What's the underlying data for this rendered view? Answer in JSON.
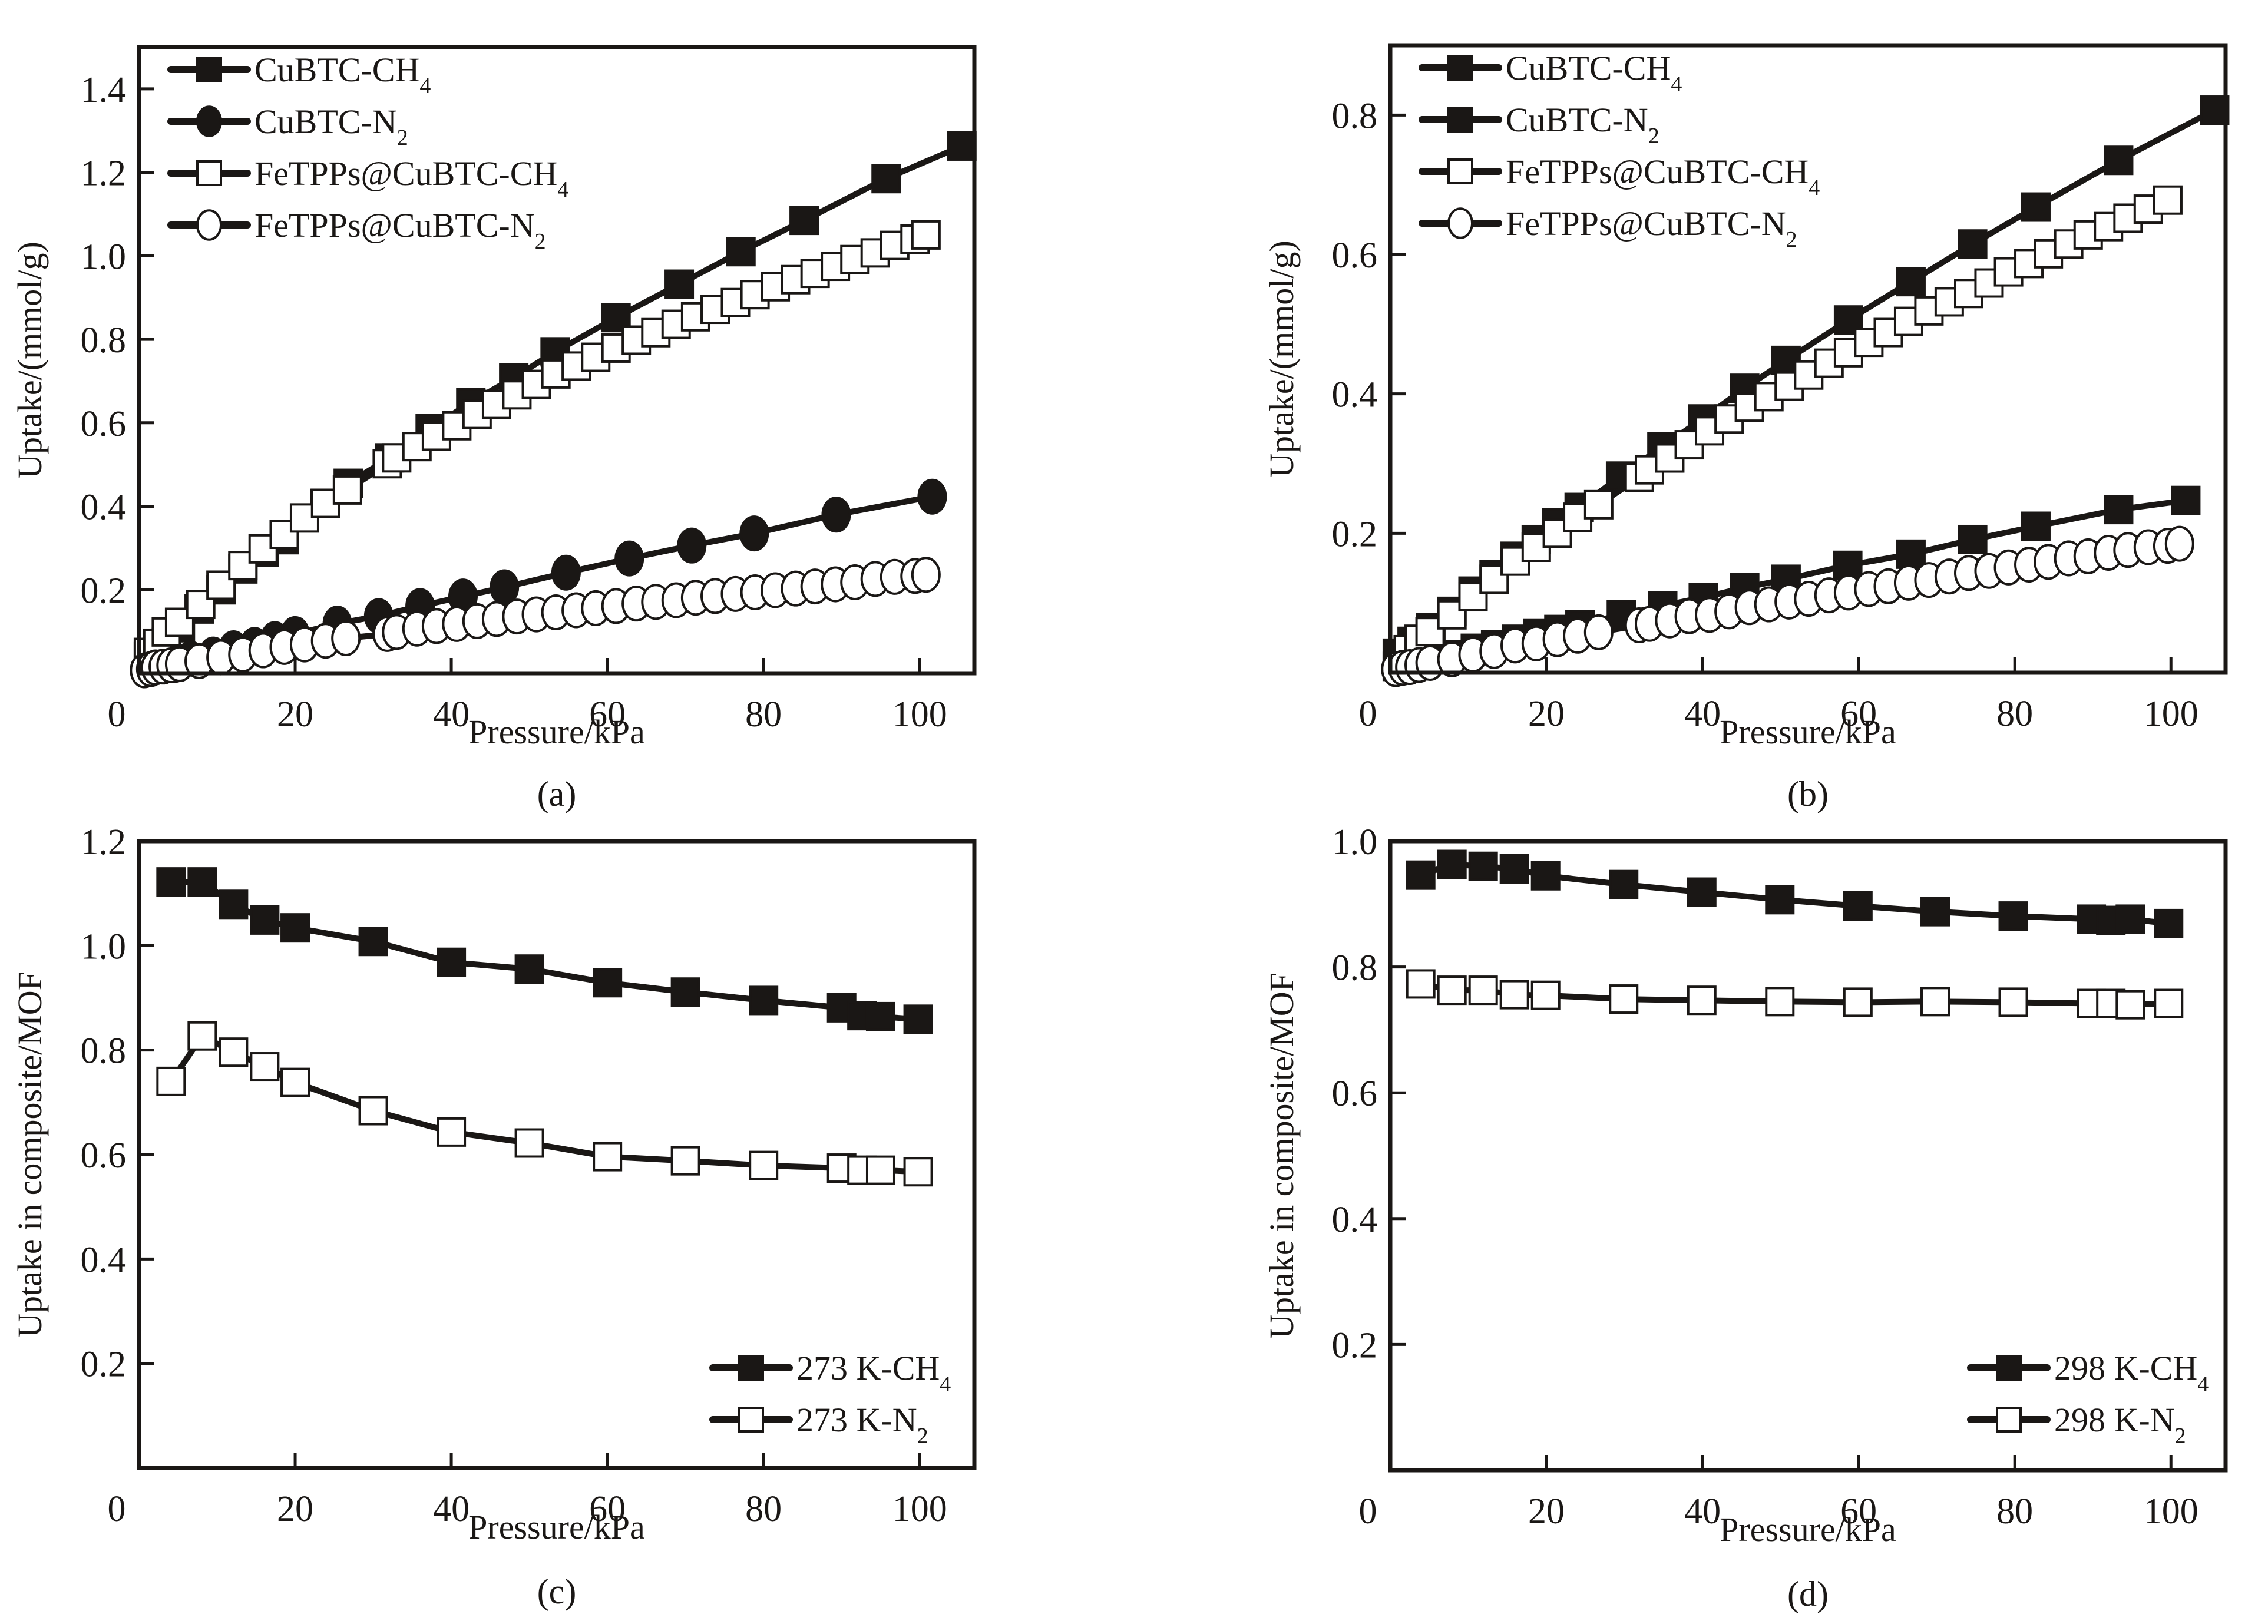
{
  "figure": {
    "ink_color": "#1a1715",
    "background": "#ffffff"
  },
  "chart_data": [
    {
      "id": "a",
      "panel_label": "(a)",
      "type": "line",
      "xlabel": "Pressure/kPa",
      "ylabel": "Uptake/(mmol/g)",
      "xlim": [
        0,
        107
      ],
      "ylim": [
        0,
        1.5
      ],
      "xticks": [
        0,
        20,
        40,
        60,
        80,
        100
      ],
      "xtick_labels": [
        "0",
        "20",
        "40",
        "60",
        "80",
        "100"
      ],
      "yticks": [
        0.2,
        0.4,
        0.6,
        0.8,
        1.0,
        1.2,
        1.4
      ],
      "ytick_labels": [
        "0.2",
        "0.4",
        "0.6",
        "0.8",
        "1.0",
        "1.2",
        "1.4"
      ],
      "grid": false,
      "legend_position": "top-left",
      "series": [
        {
          "name": "CuBTC-CH4",
          "label_main": "CuBTC-CH",
          "label_sub": "4",
          "marker": "square",
          "filled": true,
          "x": [
            1.2,
            3.5,
            5.3,
            7.7,
            10.5,
            13.3,
            16.0,
            18.6,
            23.8,
            26.8,
            32.1,
            37.3,
            42.5,
            48.0,
            53.3,
            61.1,
            69.2,
            77.1,
            85.2,
            95.7,
            105.4
          ],
          "y": [
            0.04,
            0.074,
            0.109,
            0.154,
            0.2,
            0.25,
            0.29,
            0.32,
            0.407,
            0.455,
            0.516,
            0.586,
            0.649,
            0.708,
            0.77,
            0.852,
            0.932,
            1.01,
            1.085,
            1.185,
            1.263
          ]
        },
        {
          "name": "CuBTC-N2",
          "label_main": "CuBTC-N",
          "label_sub": "2",
          "marker": "circle",
          "filled": true,
          "x": [
            1.2,
            4.6,
            6.6,
            9.5,
            12.1,
            14.8,
            17.4,
            20.0,
            25.4,
            30.7,
            36.0,
            41.5,
            46.8,
            54.7,
            62.8,
            70.8,
            78.8,
            89.3,
            101.6
          ],
          "y": [
            0.01,
            0.02,
            0.035,
            0.045,
            0.06,
            0.068,
            0.082,
            0.094,
            0.119,
            0.137,
            0.161,
            0.184,
            0.206,
            0.241,
            0.275,
            0.306,
            0.335,
            0.38,
            0.423
          ]
        },
        {
          "name": "FeTPPs@CuBTC-CH4",
          "label_main": "FeTPPs@CuBTC-CH",
          "label_sub": "4",
          "marker": "square",
          "filled": false,
          "x": [
            1.2,
            2.4,
            3.5,
            5.2,
            7.9,
            10.5,
            13.3,
            15.9,
            18.6,
            21.2,
            23.9,
            26.7,
            31.8,
            33.0,
            35.6,
            38.1,
            40.7,
            43.3,
            45.8,
            48.4,
            50.9,
            53.4,
            56.0,
            58.5,
            61.1,
            63.7,
            66.2,
            68.8,
            71.3,
            73.8,
            76.4,
            78.9,
            81.5,
            84.1,
            86.6,
            89.2,
            91.7,
            94.3,
            96.8,
            99.4,
            100.8
          ],
          "y": [
            0.05,
            0.072,
            0.099,
            0.122,
            0.165,
            0.211,
            0.258,
            0.298,
            0.333,
            0.372,
            0.407,
            0.439,
            0.502,
            0.516,
            0.543,
            0.568,
            0.593,
            0.62,
            0.644,
            0.667,
            0.692,
            0.717,
            0.736,
            0.757,
            0.779,
            0.798,
            0.816,
            0.836,
            0.854,
            0.872,
            0.888,
            0.907,
            0.926,
            0.943,
            0.958,
            0.975,
            0.991,
            1.007,
            1.025,
            1.04,
            1.05
          ]
        },
        {
          "name": "FeTPPs@CuBTC-N2",
          "label_main": "FeTPPs@CuBTC-N",
          "label_sub": "2",
          "marker": "circle",
          "filled": false,
          "x": [
            0.7,
            1.5,
            2.1,
            3.1,
            4.1,
            5.2,
            7.7,
            10.5,
            13.3,
            15.9,
            18.6,
            21.2,
            23.9,
            26.5,
            31.8,
            33.0,
            35.6,
            38.1,
            40.7,
            43.3,
            45.8,
            48.4,
            50.9,
            53.4,
            56.0,
            58.5,
            61.1,
            63.7,
            66.2,
            68.8,
            71.3,
            73.8,
            76.4,
            78.9,
            81.5,
            84.1,
            86.6,
            89.2,
            91.7,
            94.3,
            96.8,
            99.4,
            100.8
          ],
          "y": [
            0.007,
            0.01,
            0.014,
            0.016,
            0.019,
            0.022,
            0.029,
            0.038,
            0.045,
            0.055,
            0.063,
            0.069,
            0.078,
            0.084,
            0.094,
            0.099,
            0.107,
            0.113,
            0.118,
            0.125,
            0.13,
            0.136,
            0.141,
            0.146,
            0.151,
            0.156,
            0.161,
            0.167,
            0.171,
            0.175,
            0.181,
            0.185,
            0.19,
            0.194,
            0.199,
            0.203,
            0.208,
            0.213,
            0.218,
            0.226,
            0.231,
            0.233,
            0.236
          ]
        }
      ]
    },
    {
      "id": "b",
      "panel_label": "(b)",
      "type": "line",
      "xlabel": "Pressure/kPa",
      "ylabel": "Uptake/(mmol/g)",
      "xlim": [
        0,
        107
      ],
      "ylim": [
        0,
        0.9
      ],
      "xticks": [
        0,
        20,
        40,
        60,
        80,
        100
      ],
      "xtick_labels": [
        "0",
        "20",
        "40",
        "60",
        "80",
        "100"
      ],
      "yticks": [
        0.2,
        0.4,
        0.6,
        0.8
      ],
      "ytick_labels": [
        "0.2",
        "0.4",
        "0.6",
        "0.8"
      ],
      "grid": false,
      "legend_position": "top-left",
      "series": [
        {
          "name": "CuBTC-CH4",
          "label_main": "CuBTC-CH",
          "label_sub": "4",
          "marker": "square",
          "filled": true,
          "x": [
            0.9,
            2.8,
            5.2,
            7.9,
            10.6,
            13.3,
            16.0,
            18.7,
            21.3,
            24.2,
            29.5,
            34.8,
            40.0,
            45.4,
            50.7,
            58.7,
            66.7,
            74.6,
            82.7,
            93.3,
            105.6
          ],
          "y": [
            0.028,
            0.045,
            0.065,
            0.088,
            0.117,
            0.141,
            0.167,
            0.191,
            0.215,
            0.237,
            0.282,
            0.324,
            0.364,
            0.408,
            0.448,
            0.506,
            0.561,
            0.615,
            0.668,
            0.735,
            0.807
          ]
        },
        {
          "name": "CuBTC-N2",
          "label_main": "CuBTC-N",
          "label_sub": "2",
          "marker": "square",
          "filled": true,
          "x": [
            0.9,
            5.5,
            8.2,
            10.9,
            13.5,
            16.2,
            18.9,
            21.6,
            24.3,
            29.6,
            34.9,
            40.1,
            45.4,
            50.7,
            58.6,
            66.7,
            74.6,
            82.7,
            93.3,
            101.9
          ],
          "y": [
            0.009,
            0.019,
            0.026,
            0.035,
            0.04,
            0.048,
            0.056,
            0.062,
            0.069,
            0.083,
            0.096,
            0.108,
            0.122,
            0.134,
            0.154,
            0.17,
            0.191,
            0.21,
            0.234,
            0.247
          ]
        },
        {
          "name": "FeTPPs@CuBTC-CH4",
          "label_main": "FeTPPs@CuBTC-CH",
          "label_sub": "4",
          "marker": "square",
          "filled": false,
          "x": [
            2.3,
            3.7,
            5.1,
            7.9,
            10.6,
            13.3,
            16.0,
            18.7,
            21.4,
            24.0,
            26.7,
            31.9,
            33.2,
            35.8,
            38.3,
            40.9,
            43.4,
            46.0,
            48.5,
            51.1,
            53.6,
            56.2,
            58.7,
            61.3,
            63.8,
            66.4,
            69.0,
            71.6,
            74.1,
            76.7,
            79.2,
            81.8,
            84.3,
            86.9,
            89.4,
            92.0,
            94.5,
            97.1,
            99.6
          ],
          "y": [
            0.033,
            0.048,
            0.059,
            0.083,
            0.109,
            0.134,
            0.16,
            0.18,
            0.2,
            0.223,
            0.241,
            0.28,
            0.291,
            0.308,
            0.327,
            0.347,
            0.364,
            0.381,
            0.396,
            0.411,
            0.427,
            0.444,
            0.459,
            0.474,
            0.488,
            0.504,
            0.519,
            0.532,
            0.544,
            0.559,
            0.575,
            0.587,
            0.601,
            0.615,
            0.628,
            0.64,
            0.652,
            0.665,
            0.678
          ]
        },
        {
          "name": "FeTPPs@CuBTC-N2",
          "label_main": "FeTPPs@CuBTC-N",
          "label_sub": "2",
          "marker": "circle",
          "filled": false,
          "x": [
            0.7,
            1.6,
            2.5,
            3.7,
            5.1,
            7.9,
            10.6,
            13.3,
            16.0,
            18.7,
            21.4,
            24.0,
            26.7,
            31.9,
            33.2,
            35.8,
            38.3,
            40.9,
            43.4,
            46.0,
            48.5,
            51.1,
            53.6,
            56.2,
            58.7,
            61.3,
            63.8,
            66.4,
            69.0,
            71.6,
            74.1,
            76.7,
            79.2,
            81.8,
            84.3,
            86.9,
            89.4,
            92.0,
            94.5,
            97.1,
            99.6,
            101.1
          ],
          "y": [
            0.005,
            0.007,
            0.008,
            0.011,
            0.014,
            0.019,
            0.026,
            0.031,
            0.039,
            0.042,
            0.048,
            0.053,
            0.058,
            0.068,
            0.07,
            0.075,
            0.081,
            0.083,
            0.088,
            0.094,
            0.098,
            0.102,
            0.106,
            0.111,
            0.115,
            0.12,
            0.124,
            0.129,
            0.133,
            0.138,
            0.143,
            0.146,
            0.151,
            0.155,
            0.159,
            0.164,
            0.167,
            0.172,
            0.176,
            0.18,
            0.182,
            0.185
          ]
        }
      ]
    },
    {
      "id": "c",
      "panel_label": "(c)",
      "type": "line",
      "xlabel": "Pressure/kPa",
      "ylabel": "Uptake in composite/MOF",
      "xlim": [
        0,
        107
      ],
      "ylim": [
        0,
        1.2
      ],
      "xticks": [
        0,
        20,
        40,
        60,
        80,
        100
      ],
      "xtick_labels": [
        "0",
        "20",
        "40",
        "60",
        "80",
        "100"
      ],
      "yticks": [
        0.2,
        0.4,
        0.6,
        0.8,
        1.0,
        1.2
      ],
      "ytick_labels": [
        "0.2",
        "0.4",
        "0.6",
        "0.8",
        "1.0",
        "1.2"
      ],
      "grid": false,
      "legend_position": "bottom-right",
      "series": [
        {
          "name": "273 K-CH4",
          "label_main": "273 K-CH",
          "label_sub": "4",
          "marker": "square",
          "filled": true,
          "x": [
            4.1,
            8.1,
            12.1,
            16.1,
            20.0,
            30.0,
            40.0,
            50.0,
            60.0,
            70.0,
            80.0,
            90.0,
            92.6,
            95.0,
            99.8
          ],
          "y": [
            1.122,
            1.122,
            1.079,
            1.049,
            1.034,
            1.008,
            0.968,
            0.955,
            0.929,
            0.911,
            0.895,
            0.881,
            0.866,
            0.864,
            0.859
          ]
        },
        {
          "name": "273 K-N2",
          "label_main": "273 K-N",
          "label_sub": "2",
          "marker": "square",
          "filled": false,
          "x": [
            4.1,
            8.1,
            12.1,
            16.1,
            20.0,
            30.0,
            40.0,
            50.0,
            60.0,
            70.0,
            80.0,
            90.0,
            92.6,
            95.0,
            99.8
          ],
          "y": [
            0.74,
            0.827,
            0.796,
            0.768,
            0.738,
            0.684,
            0.643,
            0.622,
            0.596,
            0.588,
            0.579,
            0.574,
            0.57,
            0.57,
            0.567
          ]
        }
      ]
    },
    {
      "id": "d",
      "panel_label": "(d)",
      "type": "line",
      "xlabel": "Pressure/kPa",
      "ylabel": "Uptake in composite/MOF",
      "xlim": [
        0,
        107
      ],
      "ylim": [
        0,
        1.0
      ],
      "xticks": [
        0,
        20,
        40,
        60,
        80,
        100
      ],
      "xtick_labels": [
        "0",
        "20",
        "40",
        "60",
        "80",
        "100"
      ],
      "yticks": [
        0.2,
        0.4,
        0.6,
        0.8,
        1.0
      ],
      "ytick_labels": [
        "0.2",
        "0.4",
        "0.6",
        "0.8",
        "1.0"
      ],
      "grid": false,
      "legend_position": "bottom-right",
      "series": [
        {
          "name": "298 K-CH4",
          "label_main": "298 K-CH",
          "label_sub": "4",
          "marker": "square",
          "filled": true,
          "x": [
            3.9,
            7.9,
            11.9,
            15.9,
            19.9,
            29.9,
            39.9,
            49.9,
            59.9,
            69.8,
            79.8,
            89.8,
            92.3,
            94.8,
            99.7
          ],
          "y": [
            0.946,
            0.963,
            0.96,
            0.956,
            0.945,
            0.931,
            0.919,
            0.907,
            0.897,
            0.888,
            0.881,
            0.876,
            0.874,
            0.876,
            0.869
          ]
        },
        {
          "name": "298 K-N2",
          "label_main": "298 K-N",
          "label_sub": "2",
          "marker": "square",
          "filled": false,
          "x": [
            3.9,
            7.9,
            11.9,
            15.9,
            19.9,
            29.9,
            39.9,
            49.9,
            59.9,
            69.8,
            79.8,
            89.8,
            92.3,
            94.8,
            99.7
          ],
          "y": [
            0.773,
            0.763,
            0.763,
            0.756,
            0.755,
            0.749,
            0.747,
            0.745,
            0.744,
            0.745,
            0.744,
            0.742,
            0.742,
            0.74,
            0.742
          ]
        }
      ]
    }
  ]
}
